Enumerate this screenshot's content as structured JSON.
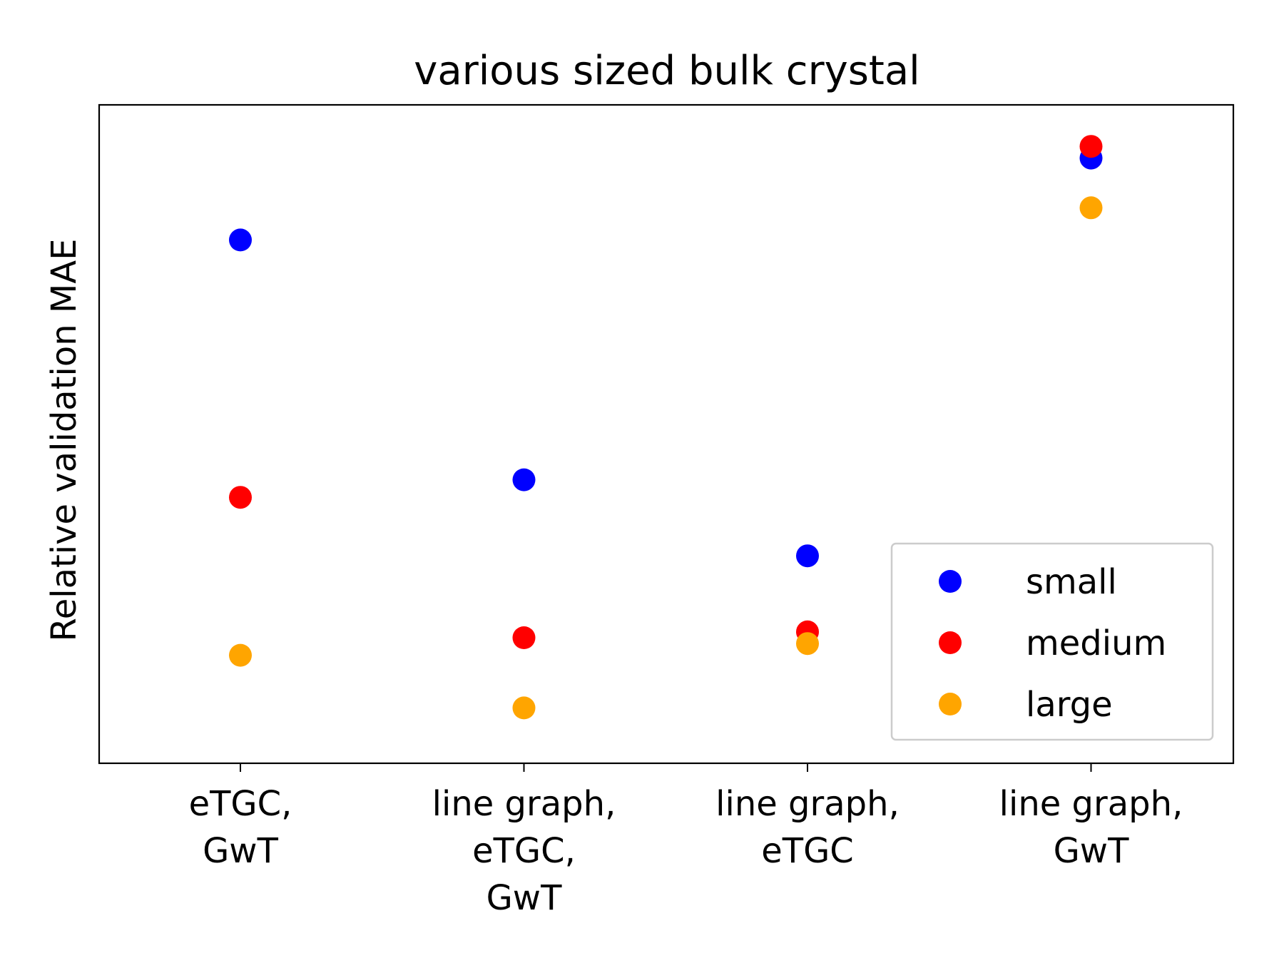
{
  "chart_data": {
    "type": "scatter",
    "title": "various sized bulk crystal",
    "xlabel": "",
    "ylabel": "Relative validation MAE",
    "categories": [
      [
        "eTGC,",
        "GwT"
      ],
      [
        "line graph,",
        "eTGC,",
        "GwT"
      ],
      [
        "line graph,",
        "eTGC"
      ],
      [
        "line graph,",
        "GwT"
      ]
    ],
    "ylim": [
      0,
      1
    ],
    "yticks_shown": false,
    "grid": false,
    "legend_position": "lower-right",
    "series": [
      {
        "name": "small",
        "color": "#0000ff",
        "values": [
          0.83,
          0.42,
          0.29,
          0.97
        ]
      },
      {
        "name": "medium",
        "color": "#ff0000",
        "values": [
          0.39,
          0.15,
          0.16,
          0.99
        ]
      },
      {
        "name": "large",
        "color": "#ffa500",
        "values": [
          0.12,
          0.03,
          0.14,
          0.885
        ]
      }
    ]
  }
}
